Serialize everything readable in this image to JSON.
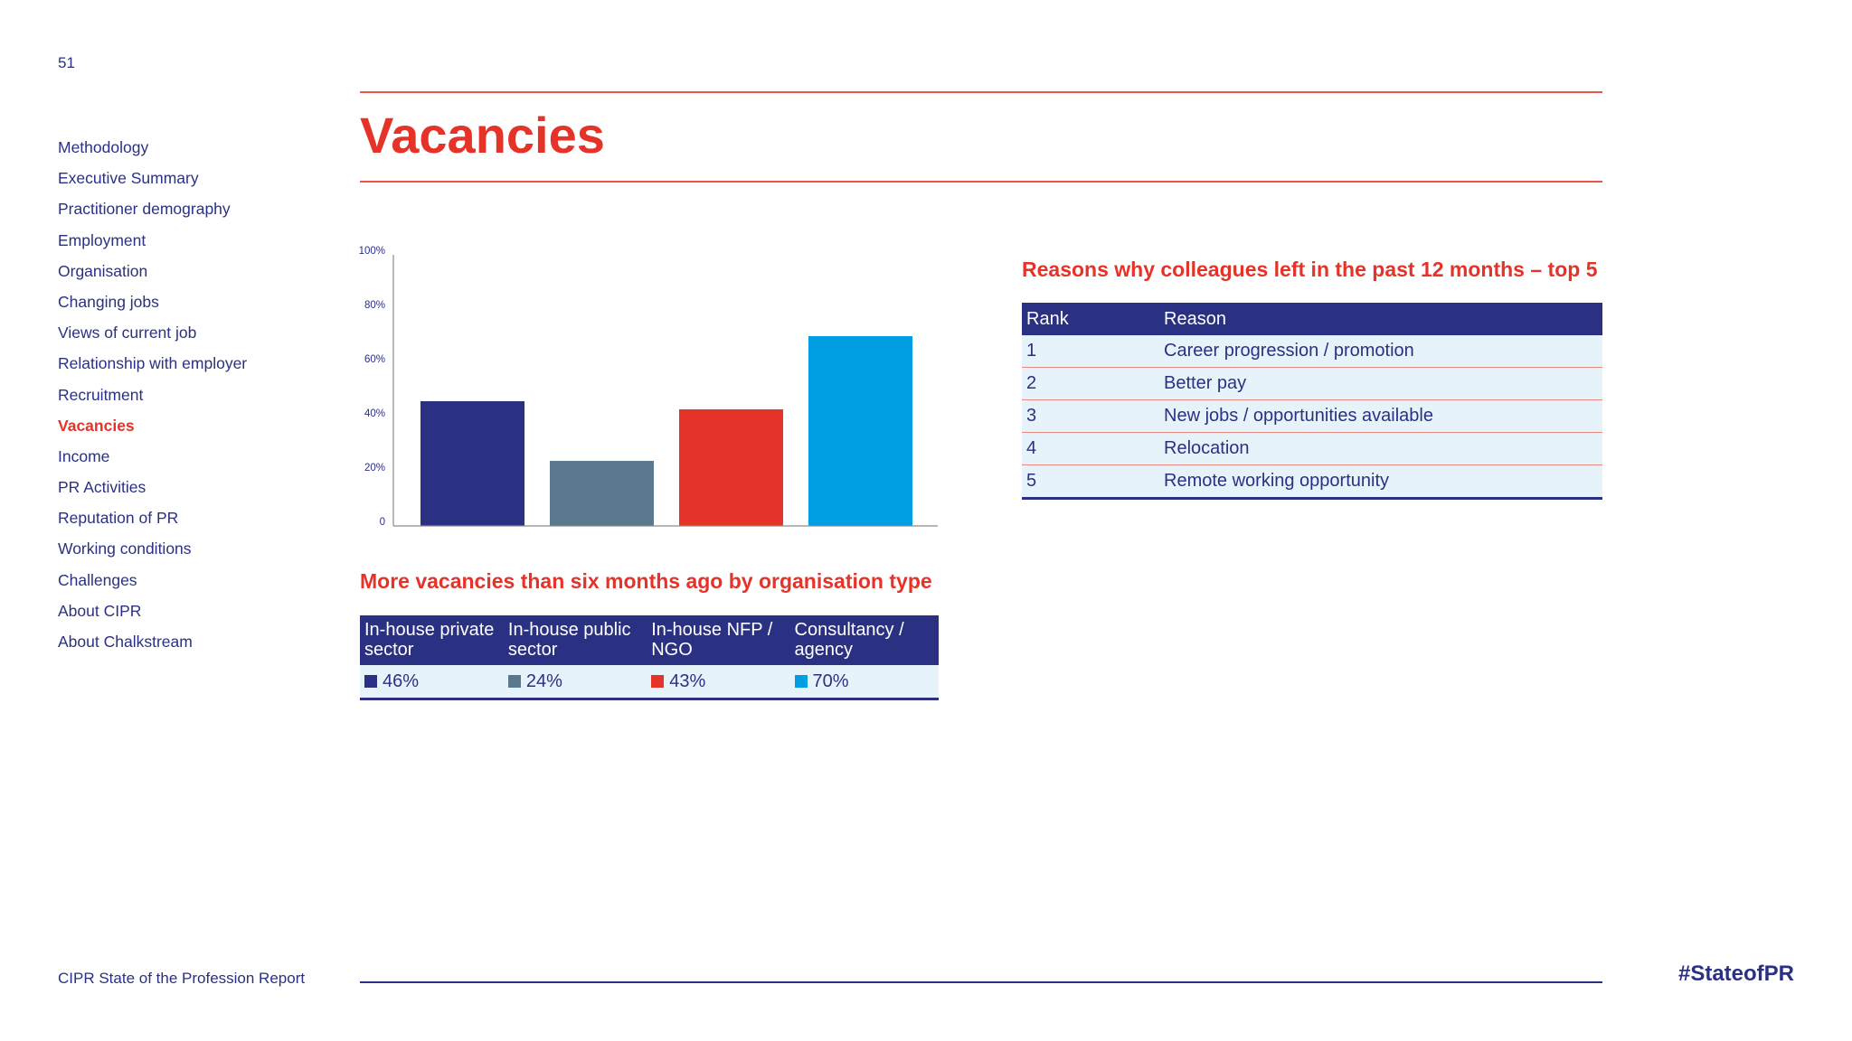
{
  "page_number": "51",
  "title": "Vacancies",
  "sidebar": {
    "items": [
      {
        "label": "Methodology",
        "active": false
      },
      {
        "label": "Executive Summary",
        "active": false
      },
      {
        "label": "Practitioner demography",
        "active": false
      },
      {
        "label": "Employment",
        "active": false
      },
      {
        "label": "Organisation",
        "active": false
      },
      {
        "label": "Changing jobs",
        "active": false
      },
      {
        "label": "Views of current job",
        "active": false
      },
      {
        "label": "Relationship with employer",
        "active": false
      },
      {
        "label": "Recruitment",
        "active": false
      },
      {
        "label": "Vacancies",
        "active": true
      },
      {
        "label": "Income",
        "active": false
      },
      {
        "label": "PR Activities",
        "active": false
      },
      {
        "label": "Reputation of PR",
        "active": false
      },
      {
        "label": "Working conditions",
        "active": false
      },
      {
        "label": "Challenges",
        "active": false
      },
      {
        "label": "About CIPR",
        "active": false
      },
      {
        "label": "About Chalkstream",
        "active": false
      }
    ]
  },
  "chart_data": {
    "type": "bar",
    "title": "More vacancies than six months ago by organisation type",
    "categories": [
      "In-house private sector",
      "In-house public sector",
      "In-house NFP / NGO",
      "Consultancy / agency"
    ],
    "values": [
      46,
      24,
      43,
      70
    ],
    "value_labels": [
      "46%",
      "24%",
      "43%",
      "70%"
    ],
    "colors": [
      "#2a3183",
      "#5a788e",
      "#e63329",
      "#009fe3"
    ],
    "yticks": [
      "0",
      "20%",
      "40%",
      "60%",
      "80%",
      "100%"
    ],
    "ylim": [
      0,
      100
    ],
    "grid": false,
    "xlabel": "",
    "ylabel": ""
  },
  "org_table": {
    "headers": [
      "In-house private sector",
      "In-house public sector",
      "In-house NFP / NGO",
      "Consultancy / agency"
    ],
    "values": [
      "46%",
      "24%",
      "43%",
      "70%"
    ]
  },
  "reasons": {
    "title": "Reasons why colleagues left in the past 12 months – top 5",
    "header_rank": "Rank",
    "header_reason": "Reason",
    "rows": [
      {
        "rank": "1",
        "reason": "Career progression / promotion"
      },
      {
        "rank": "2",
        "reason": "Better pay"
      },
      {
        "rank": "3",
        "reason": "New jobs / opportunities available"
      },
      {
        "rank": "4",
        "reason": "Relocation"
      },
      {
        "rank": "5",
        "reason": "Remote working opportunity"
      }
    ]
  },
  "footer": {
    "report_title": "CIPR State of the Profession Report",
    "hashtag": "#StateofPR"
  },
  "colors": {
    "navy": "#2a3183",
    "red": "#e63329",
    "table_row_bg": "#e7f3fb"
  }
}
